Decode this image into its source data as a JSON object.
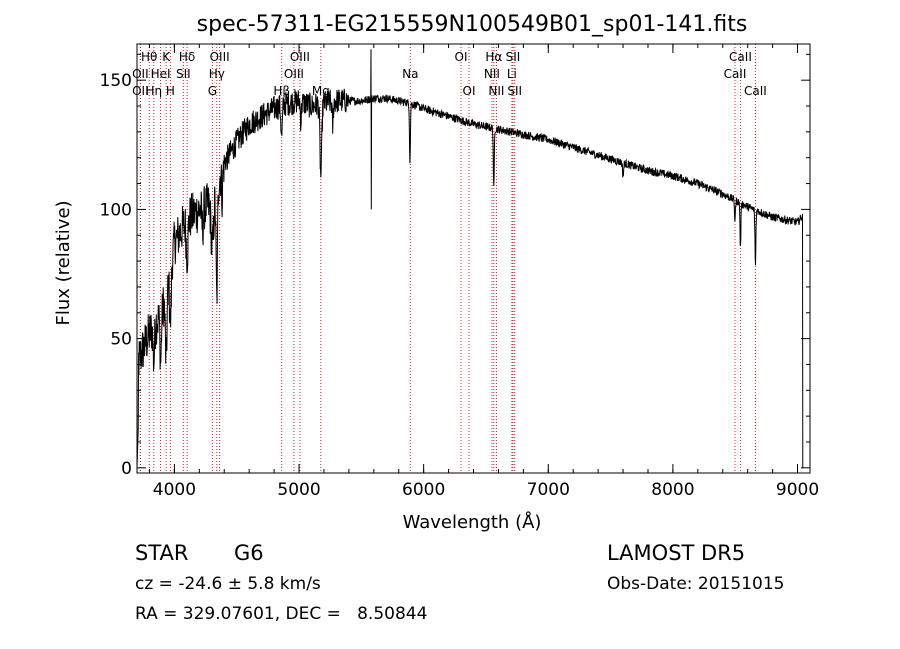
{
  "chart_data": {
    "type": "line",
    "title": "spec-57311-EG215559N100549B01_sp01-141.fits",
    "xlabel": "Wavelength (Å)",
    "ylabel": "Flux (relative)",
    "xlim": [
      3700,
      9100
    ],
    "ylim": [
      -2,
      164
    ],
    "x_ticks": [
      4000,
      5000,
      6000,
      7000,
      8000,
      9000
    ],
    "y_ticks": [
      0,
      50,
      100,
      150
    ],
    "grid": false,
    "line_color": "#000000",
    "marker_color": "#cc2222",
    "lines": [
      {
        "label": "Hθ",
        "x": 3798,
        "row": 0
      },
      {
        "label": "OII",
        "x": 3727,
        "row": 1
      },
      {
        "label": "OII",
        "x": 3727,
        "row": 2
      },
      {
        "label": "K",
        "x": 3934,
        "row": 0
      },
      {
        "label": "HeI",
        "x": 3889,
        "row": 1
      },
      {
        "label": "Hη",
        "x": 3835,
        "row": 2
      },
      {
        "label": "H",
        "x": 3968,
        "row": 2
      },
      {
        "label": "Hδ",
        "x": 4102,
        "row": 0
      },
      {
        "label": "SII",
        "x": 4072,
        "row": 1
      },
      {
        "label": "Hγ",
        "x": 4340,
        "row": 1
      },
      {
        "label": "G",
        "x": 4305,
        "row": 2
      },
      {
        "label": "OIII",
        "x": 4363,
        "row": 0
      },
      {
        "label": "Hβ",
        "x": 4861,
        "row": 2
      },
      {
        "label": "OIII",
        "x": 5007,
        "row": 0
      },
      {
        "label": "OIII",
        "x": 4959,
        "row": 1
      },
      {
        "label": "Mg",
        "x": 5175,
        "row": 2
      },
      {
        "label": "Na",
        "x": 5893,
        "row": 1
      },
      {
        "label": "OI",
        "x": 6300,
        "row": 0
      },
      {
        "label": "OI",
        "x": 6364,
        "row": 2
      },
      {
        "label": "Hα",
        "x": 6563,
        "row": 0
      },
      {
        "label": "NII",
        "x": 6548,
        "row": 1
      },
      {
        "label": "NII",
        "x": 6584,
        "row": 2
      },
      {
        "label": "SII",
        "x": 6717,
        "row": 0
      },
      {
        "label": "Li",
        "x": 6708,
        "row": 1
      },
      {
        "label": "SII",
        "x": 6731,
        "row": 2
      },
      {
        "label": "CaII",
        "x": 8542,
        "row": 0
      },
      {
        "label": "CaII",
        "x": 8498,
        "row": 1
      },
      {
        "label": "CaII",
        "x": 8662,
        "row": 2
      }
    ],
    "continuum": [
      [
        3700,
        40
      ],
      [
        3800,
        52
      ],
      [
        3900,
        60
      ],
      [
        4000,
        87
      ],
      [
        4100,
        96
      ],
      [
        4200,
        100
      ],
      [
        4300,
        102
      ],
      [
        4400,
        118
      ],
      [
        4500,
        126
      ],
      [
        4600,
        133
      ],
      [
        4700,
        136
      ],
      [
        4800,
        139
      ],
      [
        4900,
        141
      ],
      [
        5000,
        142
      ],
      [
        5100,
        140
      ],
      [
        5200,
        141
      ],
      [
        5300,
        142
      ],
      [
        5400,
        142
      ],
      [
        5500,
        142
      ],
      [
        5600,
        143
      ],
      [
        5700,
        143
      ],
      [
        5800,
        142
      ],
      [
        5900,
        141
      ],
      [
        6000,
        139
      ],
      [
        6200,
        136
      ],
      [
        6400,
        133
      ],
      [
        6600,
        131
      ],
      [
        6800,
        129
      ],
      [
        7000,
        127
      ],
      [
        7200,
        124
      ],
      [
        7400,
        121
      ],
      [
        7600,
        118
      ],
      [
        7800,
        115
      ],
      [
        8000,
        113
      ],
      [
        8200,
        110
      ],
      [
        8400,
        106
      ],
      [
        8600,
        101
      ],
      [
        8800,
        97
      ],
      [
        9000,
        95
      ],
      [
        9050,
        98
      ]
    ],
    "absorptions": [
      {
        "x": 3934,
        "depth": 28,
        "width": 10
      },
      {
        "x": 3968,
        "depth": 22,
        "width": 10
      },
      {
        "x": 3890,
        "depth": 18,
        "width": 8
      },
      {
        "x": 3835,
        "depth": 14,
        "width": 8
      },
      {
        "x": 4102,
        "depth": 14,
        "width": 10
      },
      {
        "x": 4226,
        "depth": 8,
        "width": 8
      },
      {
        "x": 4305,
        "depth": 18,
        "width": 14
      },
      {
        "x": 4340,
        "depth": 44,
        "width": 8
      },
      {
        "x": 4383,
        "depth": 10,
        "width": 6
      },
      {
        "x": 4861,
        "depth": 12,
        "width": 8
      },
      {
        "x": 5015,
        "depth": 8,
        "width": 6
      },
      {
        "x": 5175,
        "depth": 28,
        "width": 10
      },
      {
        "x": 5270,
        "depth": 10,
        "width": 6
      },
      {
        "x": 5890,
        "depth": 22,
        "width": 5
      },
      {
        "x": 6563,
        "depth": 24,
        "width": 5
      },
      {
        "x": 7600,
        "depth": 5,
        "width": 6
      },
      {
        "x": 8498,
        "depth": 8,
        "width": 5
      },
      {
        "x": 8542,
        "depth": 18,
        "width": 5
      },
      {
        "x": 8662,
        "depth": 22,
        "width": 5
      }
    ],
    "spikes": [
      {
        "x": 5577,
        "top": 162,
        "bottom": 100
      }
    ]
  },
  "info": {
    "object_type": "STAR",
    "subclass": "G6",
    "survey": "LAMOST DR5",
    "redshift": "cz = -24.6 ± 5.8 km/s",
    "obs_date": "Obs-Date: 20151015",
    "coords": "RA = 329.07601, DEC =   8.50844"
  }
}
